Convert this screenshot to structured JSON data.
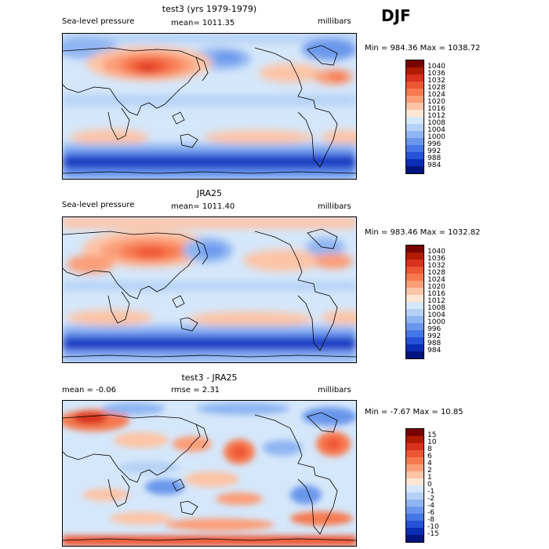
{
  "season": "DJF",
  "panels": [
    {
      "id": "test",
      "title": "test3 (yrs 1979-1979)",
      "left_label": "Sea-level pressure",
      "center_label": "mean= 1011.35",
      "right_label": "millibars",
      "minmax": "Min = 984.36 Max = 1038.72",
      "levels": [
        "1040",
        "1036",
        "1032",
        "1028",
        "1024",
        "1020",
        "1016",
        "1012",
        "1008",
        "1004",
        "1000",
        "996",
        "992",
        "988",
        "984"
      ],
      "colors": [
        "#7a0000",
        "#b01b00",
        "#d8311e",
        "#ee5533",
        "#f7794f",
        "#fb9e78",
        "#fdc4a6",
        "#fee6d4",
        "#d5e7fa",
        "#b5d1f6",
        "#8fb5f2",
        "#6a97ec",
        "#4677e6",
        "#2552d8",
        "#0a2db8",
        "#001480"
      ]
    },
    {
      "id": "obs",
      "title": "JRA25",
      "left_label": "Sea-level pressure",
      "center_label": "mean= 1011.40",
      "right_label": "millibars",
      "minmax": "Min = 983.46 Max = 1032.82",
      "levels": [
        "1040",
        "1036",
        "1032",
        "1028",
        "1024",
        "1020",
        "1016",
        "1012",
        "1008",
        "1004",
        "1000",
        "996",
        "992",
        "988",
        "984"
      ],
      "colors": [
        "#7a0000",
        "#b01b00",
        "#d8311e",
        "#ee5533",
        "#f7794f",
        "#fb9e78",
        "#fdc4a6",
        "#fee6d4",
        "#d5e7fa",
        "#b5d1f6",
        "#8fb5f2",
        "#6a97ec",
        "#4677e6",
        "#2552d8",
        "#0a2db8",
        "#001480"
      ]
    },
    {
      "id": "diff",
      "title": "test3 - JRA25",
      "left_label": "mean = -0.06",
      "center_label": "rmse = 2.31",
      "right_label": "millibars",
      "minmax": "Min = -7.67 Max = 10.85",
      "levels": [
        "15",
        "10",
        "8",
        "6",
        "4",
        "2",
        "1",
        "0",
        "-1",
        "-2",
        "-4",
        "-6",
        "-8",
        "-10",
        "-15"
      ],
      "colors": [
        "#7a0000",
        "#b01b00",
        "#d8311e",
        "#ee5533",
        "#f7794f",
        "#fb9e78",
        "#fdc4a6",
        "#fee6d4",
        "#d5e7fa",
        "#b5d1f6",
        "#8fb5f2",
        "#6a97ec",
        "#4677e6",
        "#2552d8",
        "#0a2db8",
        "#001480"
      ]
    }
  ]
}
